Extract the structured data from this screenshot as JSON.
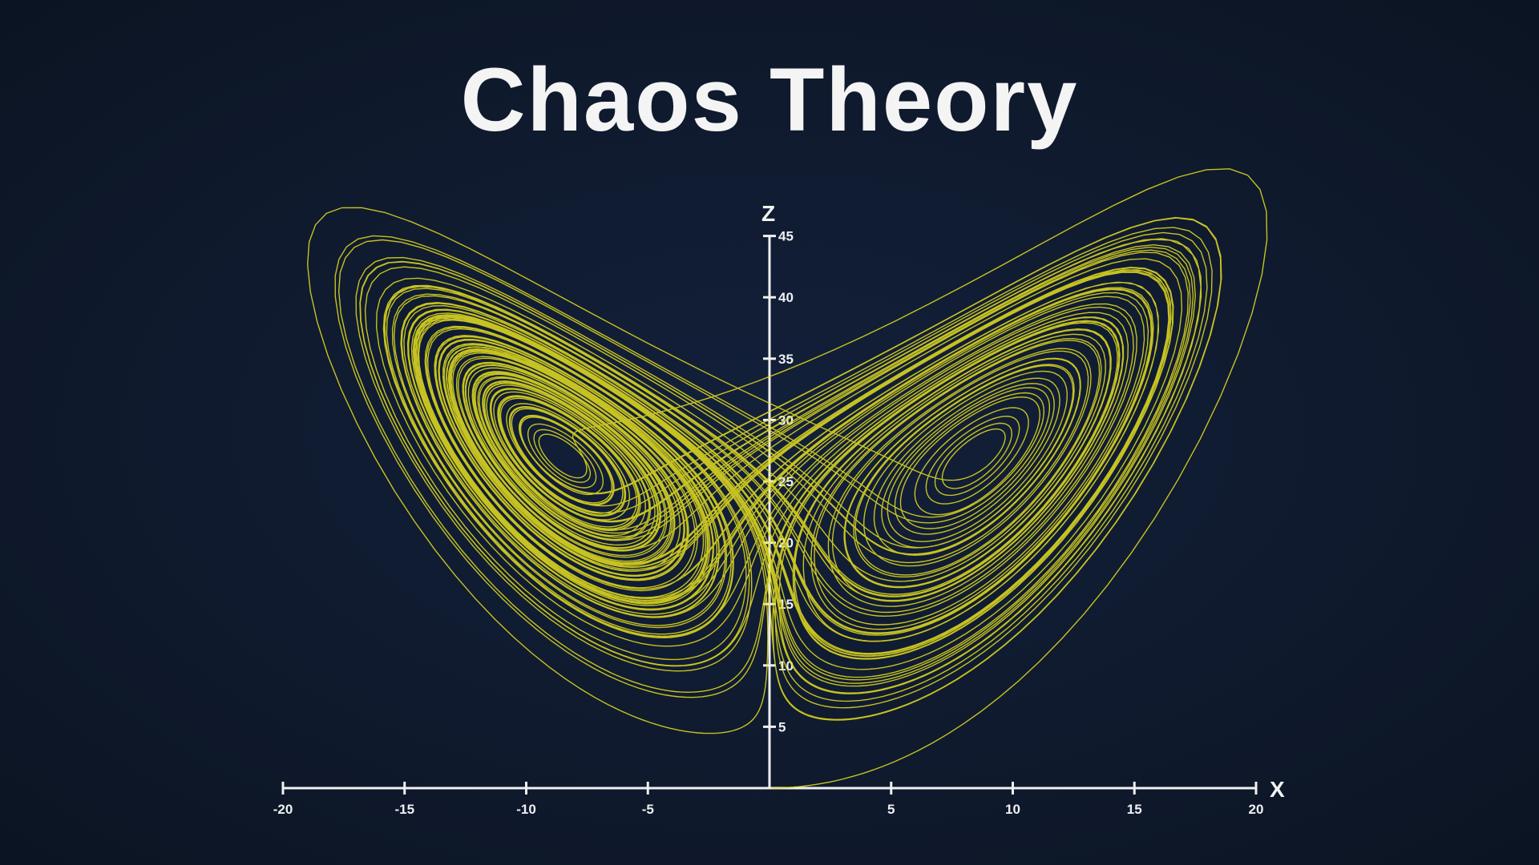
{
  "chart_data": {
    "type": "line",
    "title": "Chaos Theory",
    "xlabel": "X",
    "ylabel": "Z",
    "xlim": [
      -20,
      20
    ],
    "ylim": [
      0,
      45
    ],
    "x_ticks": [
      "-20",
      "-15",
      "-10",
      "-5",
      "5",
      "10",
      "15",
      "20"
    ],
    "y_ticks": [
      "5",
      "10",
      "15",
      "20",
      "25",
      "30",
      "35",
      "40",
      "45"
    ],
    "grid": false,
    "series": [
      {
        "description_shape": "Lorenz attractor (x–z projection)",
        "color": "#e6df1f"
      }
    ],
    "colors": {
      "background": "#0f1a2e",
      "axis": "#f0f0f0",
      "curve": "#e6df1f"
    }
  }
}
